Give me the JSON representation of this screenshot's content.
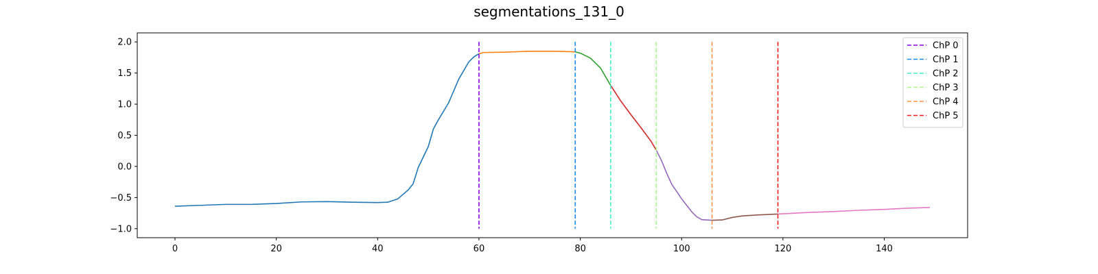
{
  "chart_data": {
    "type": "line",
    "title": "segmentations_131_0",
    "xlabel": "",
    "ylabel": "",
    "xlim": [
      -7.45,
      156.45
    ],
    "ylim": [
      -1.145,
      2.145
    ],
    "xticks": [
      0,
      20,
      40,
      60,
      80,
      100,
      120,
      140
    ],
    "yticks": [
      -1.0,
      -0.5,
      0.0,
      0.5,
      1.0,
      1.5,
      2.0
    ],
    "grid": false,
    "legend_position": "top-right",
    "segments": [
      {
        "color": "#1f77b4",
        "points": [
          [
            0,
            -0.64
          ],
          [
            5,
            -0.625
          ],
          [
            10,
            -0.61
          ],
          [
            15,
            -0.61
          ],
          [
            20,
            -0.595
          ],
          [
            25,
            -0.57
          ],
          [
            30,
            -0.565
          ],
          [
            35,
            -0.575
          ],
          [
            40,
            -0.58
          ],
          [
            42,
            -0.575
          ],
          [
            44,
            -0.52
          ],
          [
            46,
            -0.38
          ],
          [
            47,
            -0.28
          ],
          [
            48,
            -0.02
          ],
          [
            50,
            0.32
          ],
          [
            51,
            0.6
          ],
          [
            52,
            0.75
          ],
          [
            54,
            1.02
          ],
          [
            56,
            1.4
          ],
          [
            58,
            1.68
          ],
          [
            59,
            1.76
          ],
          [
            60,
            1.81
          ]
        ]
      },
      {
        "color": "#ff7f0e",
        "points": [
          [
            60,
            1.81
          ],
          [
            61,
            1.83
          ],
          [
            65,
            1.835
          ],
          [
            70,
            1.85
          ],
          [
            75,
            1.85
          ],
          [
            79,
            1.84
          ]
        ]
      },
      {
        "color": "#2ca02c",
        "points": [
          [
            79,
            1.84
          ],
          [
            80,
            1.82
          ],
          [
            82,
            1.74
          ],
          [
            84,
            1.58
          ],
          [
            86,
            1.3
          ]
        ]
      },
      {
        "color": "#d62728",
        "points": [
          [
            86,
            1.3
          ],
          [
            88,
            1.05
          ],
          [
            90,
            0.83
          ],
          [
            92,
            0.62
          ],
          [
            94,
            0.4
          ],
          [
            95,
            0.26
          ]
        ]
      },
      {
        "color": "#9467bd",
        "points": [
          [
            95,
            0.26
          ],
          [
            96,
            0.1
          ],
          [
            97,
            -0.1
          ],
          [
            98,
            -0.28
          ],
          [
            100,
            -0.52
          ],
          [
            102,
            -0.73
          ],
          [
            103,
            -0.81
          ],
          [
            104,
            -0.855
          ],
          [
            106,
            -0.865
          ]
        ]
      },
      {
        "color": "#8c564b",
        "points": [
          [
            106,
            -0.865
          ],
          [
            108,
            -0.86
          ],
          [
            110,
            -0.82
          ],
          [
            112,
            -0.795
          ],
          [
            115,
            -0.78
          ],
          [
            119,
            -0.765
          ]
        ]
      },
      {
        "color": "#e377c2",
        "points": [
          [
            119,
            -0.765
          ],
          [
            125,
            -0.74
          ],
          [
            130,
            -0.725
          ],
          [
            135,
            -0.705
          ],
          [
            140,
            -0.69
          ],
          [
            145,
            -0.67
          ],
          [
            149,
            -0.66
          ]
        ]
      }
    ],
    "changepoints": [
      {
        "name": "ChP 0",
        "x": 60,
        "color": "#8a00ee",
        "ymin": -1.0,
        "ymax": 2.0
      },
      {
        "name": "ChP 1",
        "x": 79,
        "color": "#1a8cf0",
        "ymin": -1.0,
        "ymax": 2.0
      },
      {
        "name": "ChP 2",
        "x": 86,
        "color": "#44eecc",
        "ymin": -1.0,
        "ymax": 2.0
      },
      {
        "name": "ChP 3",
        "x": 95,
        "color": "#aaf58a",
        "ymin": -1.0,
        "ymax": 2.0
      },
      {
        "name": "ChP 4",
        "x": 106,
        "color": "#ff9348",
        "ymin": -1.0,
        "ymax": 2.0
      },
      {
        "name": "ChP 5",
        "x": 119,
        "color": "#ff1a1a",
        "ymin": -1.0,
        "ymax": 2.0
      }
    ]
  }
}
